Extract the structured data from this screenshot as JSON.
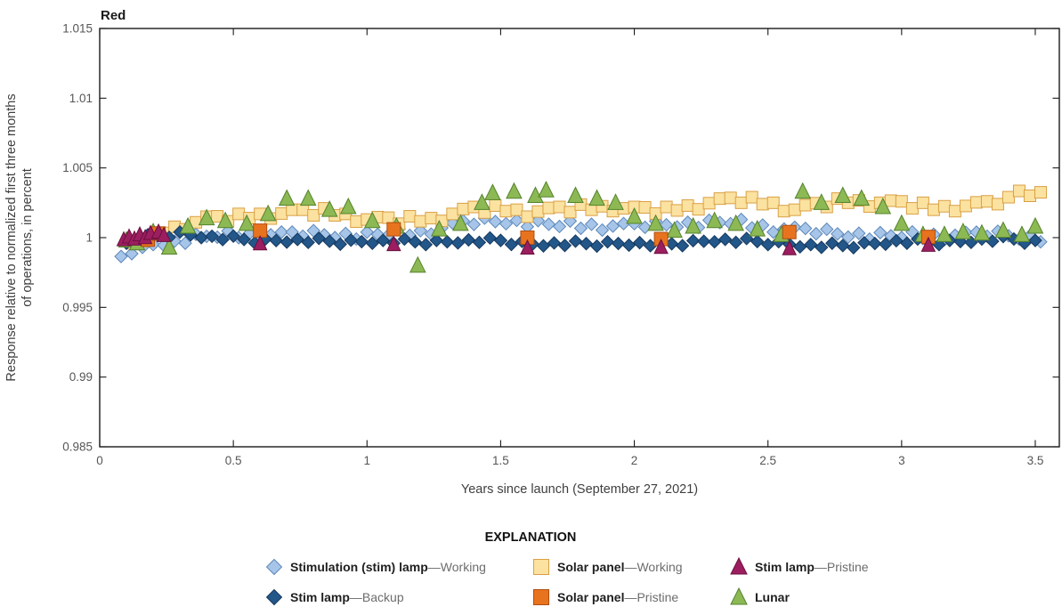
{
  "chart_data": {
    "type": "scatter",
    "title": "Red",
    "xlabel": "Years since launch (September 27, 2021)",
    "ylabel_line1": "Response relative to normalized first three months",
    "ylabel_line2": "of operations, in percent",
    "xlim": [
      0,
      3.59
    ],
    "ylim": [
      0.985,
      1.015
    ],
    "grid": false,
    "x_ticks": {
      "values": [
        0,
        0.5,
        1,
        1.5,
        2,
        2.5,
        3,
        3.5
      ],
      "labels": [
        "0",
        "0.5",
        "1",
        "1.5",
        "2",
        "2.5",
        "3",
        "3.5"
      ]
    },
    "y_ticks": {
      "values": [
        0.985,
        0.99,
        0.995,
        1,
        1.005,
        1.01,
        1.015
      ],
      "labels": [
        "0.985",
        "0.99",
        "0.995",
        "1",
        "1.005",
        "1.01",
        "1.015"
      ]
    },
    "series": [
      {
        "id": "stim_working",
        "marker": "diamond",
        "fill": "#a6c5e8",
        "stroke": "#5d88ba",
        "s": 7,
        "legend_bold": "Stimulation (stim) lamp",
        "legend_rest": "—Working",
        "x0": 0.08,
        "dx": 0.04,
        "values": [
          0.99865,
          0.99885,
          0.9993,
          0.9995,
          0.99945,
          0.99975,
          0.9996,
          1.00024,
          1.00009,
          1.00003,
          1.00048,
          1.0,
          1.0003,
          0.9999,
          1.0002,
          1.0004,
          1.0004,
          1.0001,
          1.0005,
          1.0002,
          1.0,
          1.0003,
          0.9999,
          1.0004,
          1.00024,
          1.00018,
          1.00062,
          1.00016,
          1.0005,
          1.00025,
          1.0007,
          1.00105,
          1.0012,
          1.00095,
          1.0014,
          1.00115,
          1.001,
          1.00124,
          1.00078,
          1.00122,
          1.00096,
          1.0008,
          1.00119,
          1.00067,
          1.00096,
          1.00054,
          1.00083,
          1.00101,
          1.001,
          1.00074,
          1.00118,
          1.00092,
          1.00076,
          1.0011,
          1.00073,
          1.00125,
          1.00108,
          1.001,
          1.0013,
          1.0007,
          1.0009,
          1.0004,
          1.00062,
          1.00074,
          1.00066,
          1.00028,
          1.0006,
          1.00027,
          1.00004,
          1.00031,
          0.99989,
          1.00036,
          1.00013,
          1.0,
          1.00041,
          0.99993,
          1.00024,
          0.99985,
          1.00017,
          1.00038,
          1.00039,
          1.0001,
          1.00046,
          1.00013,
          0.99989,
          1.00015,
          0.9997
        ]
      },
      {
        "id": "solar_working",
        "marker": "square",
        "fill": "#fbe2a0",
        "stroke": "#d9a045",
        "s": 6.5,
        "legend_bold": "Solar panel",
        "legend_rest": "—Working",
        "x0": 0.12,
        "dx": 0.04,
        "values": [
          0.9996,
          0.99975,
          1.0002,
          1.00034,
          1.00078,
          1.0006,
          1.0011,
          1.0015,
          1.00153,
          1.00117,
          1.0017,
          1.0014,
          1.0017,
          1.00137,
          1.00173,
          1.002,
          1.002,
          1.0016,
          1.0021,
          1.0016,
          1.0017,
          1.00115,
          1.0013,
          1.00147,
          1.00143,
          1.001,
          1.00153,
          1.00117,
          1.0014,
          1.0012,
          1.0017,
          1.00205,
          1.0022,
          1.0018,
          1.0023,
          1.0019,
          1.002,
          1.0015,
          1.00187,
          1.00213,
          1.0022,
          1.00183,
          1.00237,
          1.002,
          1.00225,
          1.0019,
          1.0021,
          1.0022,
          1.00217,
          1.00173,
          1.0022,
          1.00195,
          1.0023,
          1.00203,
          1.00247,
          1.0028,
          1.00285,
          1.0025,
          1.0029,
          1.0024,
          1.0025,
          1.0019,
          1.002,
          1.00233,
          1.00247,
          1.0022,
          1.0028,
          1.0025,
          1.00267,
          1.00223,
          1.0025,
          1.00265,
          1.0026,
          1.0021,
          1.0025,
          1.002,
          1.00225,
          1.0019,
          1.00227,
          1.00253,
          1.0026,
          1.0024,
          1.0029,
          1.00335,
          1.003,
          1.00325
        ]
      },
      {
        "id": "stim_backup",
        "marker": "diamond",
        "fill": "#235689",
        "stroke": "#16395e",
        "s": 7,
        "legend_bold": "Stim lamp",
        "legend_rest": "—Backup",
        "x0": 0.1,
        "dx": 0.04,
        "values": [
          0.9996,
          0.9997,
          1.0002,
          1.00014,
          1.00002,
          1.0004,
          1.0002,
          1.0,
          1.0001,
          0.99986,
          1.00011,
          0.99987,
          0.99962,
          0.9999,
          0.99979,
          0.99968,
          0.99987,
          0.99966,
          0.99995,
          0.99974,
          0.99953,
          0.99982,
          0.99971,
          0.9996,
          0.9998,
          0.9996,
          0.9999,
          0.9997,
          0.9995,
          0.9998,
          0.9997,
          0.99962,
          0.99984,
          0.99966,
          0.99998,
          0.9998,
          0.99951,
          0.99973,
          0.99954,
          0.99941,
          0.99962,
          0.99944,
          0.99975,
          0.99957,
          0.99939,
          0.9997,
          0.99958,
          0.99946,
          0.99964,
          0.99942,
          0.9997,
          0.99956,
          0.99942,
          0.99978,
          0.99974,
          0.9997,
          0.99988,
          0.99966,
          0.99994,
          0.99972,
          0.9995,
          0.99971,
          0.99953,
          0.99934,
          0.9995,
          0.9993,
          0.9996,
          0.99943,
          0.99928,
          0.99963,
          0.99958,
          0.99953,
          0.99978,
          0.9996,
          0.9999,
          0.9997,
          0.9995,
          0.9998,
          0.99972,
          0.99966,
          0.9999,
          0.99974,
          1.00008,
          0.9999,
          0.9996,
          0.9998
        ]
      },
      {
        "id": "lunar",
        "marker": "triangle",
        "fill": "#8cb954",
        "stroke": "#55832c",
        "s": 8.5,
        "h": 15,
        "legend_bold": "Lunar",
        "legend_rest": "",
        "points": [
          [
            0.1,
            0.9998
          ],
          [
            0.14,
            0.9996
          ],
          [
            0.2,
            1.0004
          ],
          [
            0.26,
            0.9993
          ],
          [
            0.33,
            1.0008
          ],
          [
            0.4,
            1.0014
          ],
          [
            0.47,
            1.0012
          ],
          [
            0.55,
            1.001
          ],
          [
            0.63,
            1.0017
          ],
          [
            0.7,
            1.0028
          ],
          [
            0.78,
            1.0028
          ],
          [
            0.86,
            1.002
          ],
          [
            0.93,
            1.0022
          ],
          [
            1.02,
            1.0012
          ],
          [
            1.11,
            1.0008
          ],
          [
            1.19,
            0.998
          ],
          [
            1.27,
            1.0006
          ],
          [
            1.35,
            1.001
          ],
          [
            1.43,
            1.0025
          ],
          [
            1.47,
            1.0032
          ],
          [
            1.55,
            1.0033
          ],
          [
            1.63,
            1.003
          ],
          [
            1.67,
            1.0034
          ],
          [
            1.78,
            1.003
          ],
          [
            1.86,
            1.0028
          ],
          [
            1.93,
            1.0025
          ],
          [
            2.0,
            1.0015
          ],
          [
            2.08,
            1.001
          ],
          [
            2.15,
            1.0005
          ],
          [
            2.22,
            1.0008
          ],
          [
            2.3,
            1.0012
          ],
          [
            2.38,
            1.001
          ],
          [
            2.46,
            1.0006
          ],
          [
            2.55,
            1.0002
          ],
          [
            2.63,
            1.0033
          ],
          [
            2.7,
            1.0025
          ],
          [
            2.78,
            1.003
          ],
          [
            2.85,
            1.0028
          ],
          [
            2.93,
            1.0022
          ],
          [
            3.0,
            1.001
          ],
          [
            3.08,
            1.0002
          ],
          [
            3.16,
            1.0002
          ],
          [
            3.23,
            1.0004
          ],
          [
            3.3,
            1.0003
          ],
          [
            3.38,
            1.0005
          ],
          [
            3.45,
            1.0002
          ],
          [
            3.5,
            1.0008
          ]
        ]
      },
      {
        "id": "solar_pristine",
        "marker": "square",
        "fill": "#e8731f",
        "stroke": "#b04e0f",
        "s": 7.5,
        "legend_bold": "Solar panel",
        "legend_rest": "—Pristine",
        "points": [
          [
            0.18,
            0.99985
          ],
          [
            0.22,
            1.0003
          ],
          [
            0.6,
            1.0005
          ],
          [
            1.1,
            1.0006
          ],
          [
            1.6,
            1.0
          ],
          [
            2.1,
            0.9999
          ],
          [
            2.58,
            1.0004
          ],
          [
            3.1,
            1.00005
          ]
        ]
      },
      {
        "id": "stim_pristine",
        "marker": "triangle",
        "fill": "#9c1e60",
        "stroke": "#6b103f",
        "s": 7.5,
        "h": 13.5,
        "legend_bold": "Stim lamp",
        "legend_rest": "—Pristine",
        "points": [
          [
            0.09,
            0.99985
          ],
          [
            0.11,
            1.00005
          ],
          [
            0.13,
            0.9999
          ],
          [
            0.15,
            1.0002
          ],
          [
            0.17,
            1.0
          ],
          [
            0.19,
            1.0003
          ],
          [
            0.22,
            1.0004
          ],
          [
            0.24,
            1.00015
          ],
          [
            0.6,
            0.99955
          ],
          [
            1.1,
            0.9995
          ],
          [
            1.6,
            0.99925
          ],
          [
            2.1,
            0.9993
          ],
          [
            2.58,
            0.9992
          ],
          [
            3.1,
            0.99945
          ]
        ]
      }
    ]
  },
  "legend": {
    "title": "EXPLANATION",
    "columns": [
      [
        "stim_working",
        "stim_backup"
      ],
      [
        "solar_working",
        "solar_pristine"
      ],
      [
        "stim_pristine",
        "lunar"
      ]
    ]
  }
}
